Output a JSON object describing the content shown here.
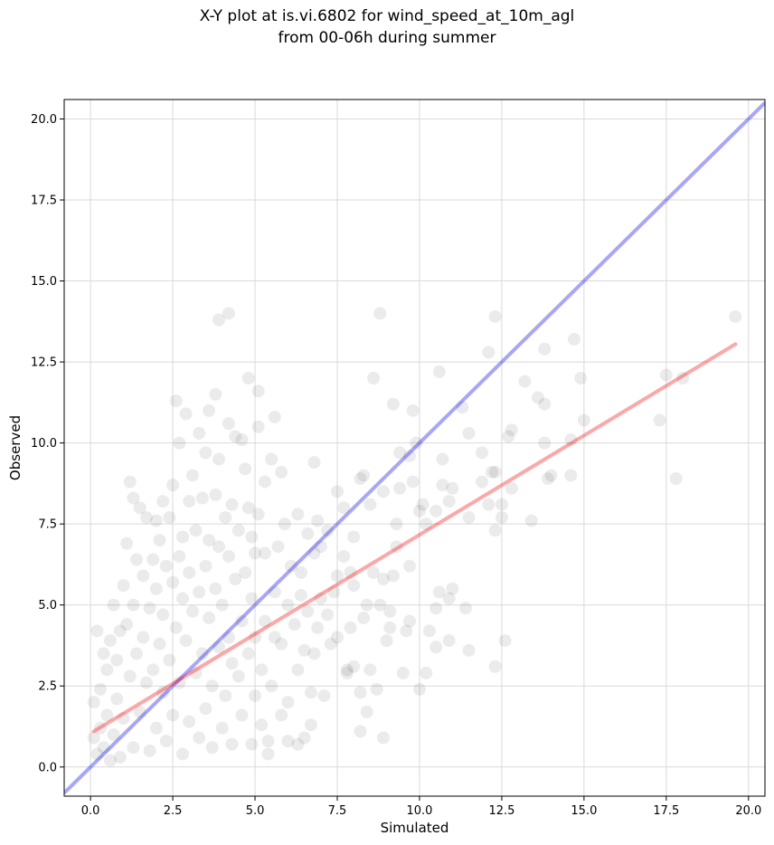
{
  "title_line1": "X-Y plot at is.vi.6802 for wind_speed_at_10m_agl",
  "title_line2": "from 00-06h during summer",
  "chart_data": {
    "type": "scatter",
    "xlabel": "Simulated",
    "ylabel": "Observed",
    "xlim": [
      -0.8,
      20.5
    ],
    "ylim": [
      -0.9,
      20.6
    ],
    "xticks": [
      "0.0",
      "2.5",
      "5.0",
      "7.5",
      "10.0",
      "12.5",
      "15.0",
      "17.5",
      "20.0"
    ],
    "yticks": [
      "0.0",
      "2.5",
      "5.0",
      "7.5",
      "10.0",
      "12.5",
      "15.0",
      "17.5",
      "20.0"
    ],
    "grid": true,
    "point_color": "#000000",
    "point_alpha": 0.08,
    "one_to_one_line": {
      "color": "#0000ff",
      "x": [
        -0.8,
        20.5
      ],
      "y": [
        -0.8,
        20.5
      ]
    },
    "fit_line": {
      "color": "#ff0000",
      "x": [
        0.1,
        19.6
      ],
      "y": [
        1.1,
        13.05
      ]
    },
    "points": [
      [
        19.6,
        13.9
      ],
      [
        17.8,
        8.9
      ],
      [
        18.0,
        12.0
      ],
      [
        17.5,
        12.1
      ],
      [
        17.3,
        10.7
      ],
      [
        15.0,
        10.7
      ],
      [
        14.7,
        13.2
      ],
      [
        14.6,
        10.1
      ],
      [
        14.6,
        9.0
      ],
      [
        14.9,
        12.0
      ],
      [
        14.0,
        9.0
      ],
      [
        13.9,
        8.9
      ],
      [
        13.8,
        12.9
      ],
      [
        13.8,
        10.0
      ],
      [
        13.8,
        11.2
      ],
      [
        13.6,
        11.4
      ],
      [
        13.2,
        11.9
      ],
      [
        13.4,
        7.6
      ],
      [
        12.8,
        10.4
      ],
      [
        12.7,
        10.2
      ],
      [
        12.8,
        8.6
      ],
      [
        12.5,
        8.1
      ],
      [
        12.5,
        7.7
      ],
      [
        12.6,
        3.9
      ],
      [
        12.3,
        13.9
      ],
      [
        12.1,
        12.8
      ],
      [
        12.3,
        9.1
      ],
      [
        12.2,
        9.1
      ],
      [
        12.1,
        8.1
      ],
      [
        12.3,
        7.3
      ],
      [
        12.3,
        3.1
      ],
      [
        11.9,
        9.7
      ],
      [
        11.9,
        8.8
      ],
      [
        11.5,
        10.3
      ],
      [
        11.5,
        7.7
      ],
      [
        11.3,
        11.1
      ],
      [
        11.4,
        4.9
      ],
      [
        11.5,
        3.6
      ],
      [
        11.0,
        8.6
      ],
      [
        11.0,
        5.5
      ],
      [
        10.6,
        12.2
      ],
      [
        10.9,
        8.2
      ],
      [
        10.7,
        8.7
      ],
      [
        10.9,
        5.2
      ],
      [
        10.9,
        3.9
      ],
      [
        10.7,
        9.5
      ],
      [
        10.5,
        7.9
      ],
      [
        10.6,
        5.4
      ],
      [
        10.5,
        4.9
      ],
      [
        10.5,
        3.7
      ],
      [
        10.3,
        4.2
      ],
      [
        10.2,
        7.5
      ],
      [
        10.1,
        8.1
      ],
      [
        10.0,
        7.9
      ],
      [
        9.9,
        10.0
      ],
      [
        10.2,
        2.9
      ],
      [
        10.0,
        2.4
      ],
      [
        9.8,
        11.0
      ],
      [
        9.8,
        8.8
      ],
      [
        9.7,
        9.6
      ],
      [
        9.7,
        6.2
      ],
      [
        9.7,
        4.5
      ],
      [
        9.6,
        4.2
      ],
      [
        9.5,
        2.9
      ],
      [
        9.4,
        9.7
      ],
      [
        9.4,
        8.6
      ],
      [
        9.3,
        7.5
      ],
      [
        9.2,
        11.2
      ],
      [
        9.3,
        6.8
      ],
      [
        9.2,
        5.9
      ],
      [
        9.1,
        4.8
      ],
      [
        9.1,
        4.3
      ],
      [
        9.0,
        3.9
      ],
      [
        8.9,
        8.5
      ],
      [
        8.9,
        5.8
      ],
      [
        8.9,
        0.9
      ],
      [
        8.8,
        14.0
      ],
      [
        8.8,
        5.0
      ],
      [
        8.7,
        2.4
      ],
      [
        8.6,
        12.0
      ],
      [
        8.6,
        6.0
      ],
      [
        8.5,
        3.0
      ],
      [
        8.5,
        8.1
      ],
      [
        8.4,
        5.0
      ],
      [
        8.4,
        1.7
      ],
      [
        8.3,
        9.0
      ],
      [
        8.2,
        8.9
      ],
      [
        8.3,
        4.6
      ],
      [
        8.2,
        2.3
      ],
      [
        8.2,
        1.1
      ],
      [
        8.0,
        7.1
      ],
      [
        8.0,
        5.6
      ],
      [
        8.0,
        3.1
      ],
      [
        7.9,
        6.0
      ],
      [
        7.9,
        4.3
      ],
      [
        7.8,
        3.0
      ],
      [
        7.8,
        2.9
      ],
      [
        7.7,
        8.0
      ],
      [
        7.7,
        6.5
      ],
      [
        7.5,
        8.5
      ],
      [
        7.5,
        5.9
      ],
      [
        7.5,
        4.0
      ],
      [
        7.4,
        5.4
      ],
      [
        7.3,
        3.8
      ],
      [
        7.2,
        7.3
      ],
      [
        7.2,
        4.7
      ],
      [
        7.1,
        2.2
      ],
      [
        7.0,
        6.8
      ],
      [
        7.0,
        5.2
      ],
      [
        6.9,
        7.6
      ],
      [
        6.9,
        4.3
      ],
      [
        6.8,
        9.4
      ],
      [
        6.8,
        6.6
      ],
      [
        6.8,
        3.5
      ],
      [
        6.7,
        2.3
      ],
      [
        6.7,
        1.3
      ],
      [
        6.6,
        7.2
      ],
      [
        6.6,
        4.8
      ],
      [
        6.5,
        3.6
      ],
      [
        6.5,
        0.9
      ],
      [
        6.4,
        6.0
      ],
      [
        6.4,
        5.3
      ],
      [
        6.3,
        7.8
      ],
      [
        6.3,
        3.0
      ],
      [
        6.3,
        0.7
      ],
      [
        6.2,
        4.4
      ],
      [
        6.1,
        6.2
      ],
      [
        6.0,
        5.0
      ],
      [
        6.0,
        2.0
      ],
      [
        6.0,
        0.8
      ],
      [
        5.9,
        7.5
      ],
      [
        5.8,
        9.1
      ],
      [
        5.8,
        3.8
      ],
      [
        5.8,
        1.6
      ],
      [
        5.7,
        6.8
      ],
      [
        5.6,
        10.8
      ],
      [
        5.6,
        5.4
      ],
      [
        5.6,
        4.0
      ],
      [
        5.5,
        9.5
      ],
      [
        5.5,
        2.5
      ],
      [
        5.4,
        0.8
      ],
      [
        5.4,
        0.4
      ],
      [
        5.3,
        8.8
      ],
      [
        5.3,
        6.6
      ],
      [
        5.3,
        4.5
      ],
      [
        5.2,
        3.0
      ],
      [
        5.2,
        1.3
      ],
      [
        5.1,
        11.6
      ],
      [
        5.1,
        10.5
      ],
      [
        5.1,
        7.8
      ],
      [
        5.0,
        6.6
      ],
      [
        5.0,
        4.0
      ],
      [
        5.0,
        2.2
      ],
      [
        4.9,
        7.1
      ],
      [
        4.9,
        5.2
      ],
      [
        4.9,
        0.7
      ],
      [
        4.8,
        12.0
      ],
      [
        4.8,
        8.0
      ],
      [
        4.8,
        3.5
      ],
      [
        4.7,
        9.2
      ],
      [
        4.7,
        6.0
      ],
      [
        4.6,
        10.1
      ],
      [
        4.6,
        4.5
      ],
      [
        4.6,
        1.6
      ],
      [
        4.5,
        7.3
      ],
      [
        4.5,
        2.8
      ],
      [
        4.4,
        10.2
      ],
      [
        4.4,
        5.8
      ],
      [
        4.3,
        8.1
      ],
      [
        4.3,
        3.2
      ],
      [
        4.3,
        0.7
      ],
      [
        4.2,
        14.0
      ],
      [
        4.2,
        10.6
      ],
      [
        4.2,
        6.5
      ],
      [
        4.2,
        4.0
      ],
      [
        4.1,
        7.7
      ],
      [
        4.1,
        2.2
      ],
      [
        4.0,
        5.0
      ],
      [
        4.0,
        1.2
      ],
      [
        3.9,
        13.8
      ],
      [
        3.9,
        9.5
      ],
      [
        3.9,
        6.8
      ],
      [
        3.9,
        3.7
      ],
      [
        3.8,
        11.5
      ],
      [
        3.8,
        8.4
      ],
      [
        3.8,
        5.5
      ],
      [
        3.7,
        2.5
      ],
      [
        3.7,
        0.6
      ],
      [
        3.6,
        11.0
      ],
      [
        3.6,
        7.0
      ],
      [
        3.6,
        4.6
      ],
      [
        3.5,
        9.7
      ],
      [
        3.5,
        6.2
      ],
      [
        3.5,
        1.8
      ],
      [
        3.4,
        8.3
      ],
      [
        3.4,
        3.5
      ],
      [
        3.3,
        10.3
      ],
      [
        3.3,
        5.4
      ],
      [
        3.3,
        0.9
      ],
      [
        3.2,
        7.3
      ],
      [
        3.2,
        2.9
      ],
      [
        3.1,
        9.0
      ],
      [
        3.1,
        4.8
      ],
      [
        3.0,
        8.2
      ],
      [
        3.0,
        6.0
      ],
      [
        3.0,
        1.4
      ],
      [
        2.9,
        10.9
      ],
      [
        2.9,
        3.9
      ],
      [
        2.8,
        7.1
      ],
      [
        2.8,
        5.2
      ],
      [
        2.8,
        0.4
      ],
      [
        2.7,
        10.0
      ],
      [
        2.7,
        6.5
      ],
      [
        2.7,
        2.6
      ],
      [
        2.6,
        11.3
      ],
      [
        2.6,
        4.3
      ],
      [
        2.5,
        8.7
      ],
      [
        2.5,
        5.7
      ],
      [
        2.5,
        1.6
      ],
      [
        2.4,
        7.7
      ],
      [
        2.4,
        3.3
      ],
      [
        2.3,
        6.2
      ],
      [
        2.3,
        0.8
      ],
      [
        2.2,
        8.2
      ],
      [
        2.2,
        4.7
      ],
      [
        2.2,
        2.3
      ],
      [
        2.1,
        7.0
      ],
      [
        2.1,
        3.8
      ],
      [
        2.0,
        7.6
      ],
      [
        2.0,
        5.5
      ],
      [
        2.0,
        1.2
      ],
      [
        1.9,
        6.4
      ],
      [
        1.9,
        3.0
      ],
      [
        1.8,
        4.9
      ],
      [
        1.8,
        0.5
      ],
      [
        1.7,
        7.7
      ],
      [
        1.7,
        2.6
      ],
      [
        1.6,
        5.9
      ],
      [
        1.6,
        4.0
      ],
      [
        1.5,
        8.0
      ],
      [
        1.5,
        1.7
      ],
      [
        1.4,
        6.4
      ],
      [
        1.4,
        3.5
      ],
      [
        1.3,
        8.3
      ],
      [
        1.3,
        5.0
      ],
      [
        1.3,
        0.6
      ],
      [
        1.2,
        8.8
      ],
      [
        1.2,
        2.8
      ],
      [
        1.1,
        6.9
      ],
      [
        1.1,
        4.4
      ],
      [
        1.0,
        5.6
      ],
      [
        1.0,
        1.5
      ],
      [
        0.9,
        4.2
      ],
      [
        0.9,
        0.3
      ],
      [
        0.8,
        3.3
      ],
      [
        0.8,
        2.1
      ],
      [
        0.7,
        5.0
      ],
      [
        0.7,
        1.0
      ],
      [
        0.6,
        3.9
      ],
      [
        0.6,
        0.2
      ],
      [
        0.5,
        3.0
      ],
      [
        0.5,
        1.6
      ],
      [
        0.4,
        3.5
      ],
      [
        0.4,
        0.6
      ],
      [
        0.3,
        2.4
      ],
      [
        0.3,
        1.2
      ],
      [
        0.2,
        4.2
      ],
      [
        0.2,
        0.4
      ],
      [
        0.1,
        2.0
      ],
      [
        0.1,
        0.9
      ]
    ]
  }
}
